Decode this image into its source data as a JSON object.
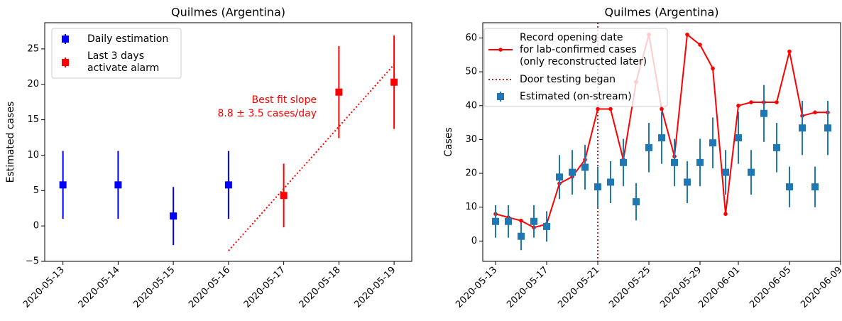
{
  "chart_data": [
    {
      "type": "errorbar",
      "title": "Quilmes (Argentina)",
      "ylabel": "Estimated cases",
      "categories": [
        "2020-05-13",
        "2020-05-14",
        "2020-05-15",
        "2020-05-16",
        "2020-05-17",
        "2020-05-18",
        "2020-05-19"
      ],
      "series": [
        {
          "name": "Daily estimation",
          "color": "#0000ff",
          "values": [
            5.8,
            5.8,
            1.4,
            5.8,
            null,
            null,
            null
          ],
          "errors": [
            4.8,
            4.8,
            4.1,
            4.8,
            null,
            null,
            null
          ]
        },
        {
          "name": "Last 3 days\nactivate alarm",
          "color": "#ff0000",
          "values": [
            null,
            null,
            null,
            null,
            4.3,
            18.9,
            20.3
          ],
          "errors": [
            null,
            null,
            null,
            null,
            4.5,
            6.5,
            6.6
          ]
        }
      ],
      "fit_line": {
        "x": [
          "2020-05-16",
          "2020-05-19"
        ],
        "values": [
          -3.5,
          22.8
        ],
        "color": "#ff0000",
        "style": "dotted"
      },
      "annotation": "Best fit slope\n8.8 ± 3.5 cases/day",
      "annotation_color": "#ff0000",
      "ylim": [
        -5,
        28.7
      ],
      "yticks": [
        {
          "value": -5,
          "label": "−5"
        },
        0,
        5,
        10,
        15,
        20,
        25
      ],
      "legend": "upper left"
    },
    {
      "type": "errorbar_line",
      "title": "Quilmes (Argentina)",
      "ylabel": "Cases",
      "x": [
        "2020-05-13",
        "2020-05-14",
        "2020-05-15",
        "2020-05-16",
        "2020-05-17",
        "2020-05-18",
        "2020-05-19",
        "2020-05-20",
        "2020-05-21",
        "2020-05-22",
        "2020-05-23",
        "2020-05-24",
        "2020-05-25",
        "2020-05-26",
        "2020-05-27",
        "2020-05-28",
        "2020-05-29",
        "2020-05-30",
        "2020-05-31",
        "2020-06-01",
        "2020-06-02",
        "2020-06-03",
        "2020-06-04",
        "2020-06-05",
        "2020-06-06",
        "2020-06-07",
        "2020-06-08"
      ],
      "series": [
        {
          "name": "Record opening date\nfor lab-confirmed cases\n(only reconstructed later)",
          "color": "#ff0000",
          "type": "line",
          "values": [
            8,
            7,
            6,
            4,
            5,
            17,
            19,
            24,
            39,
            39,
            24,
            47,
            61,
            39,
            25,
            61,
            58,
            51,
            8,
            40,
            41,
            41,
            41,
            56,
            37,
            38,
            38
          ]
        },
        {
          "name": "Estimated (on-stream)",
          "color": "#1f77b4",
          "type": "errorbar",
          "values": [
            5.8,
            5.8,
            1.4,
            5.8,
            4.3,
            18.9,
            20.3,
            21.8,
            16,
            17.4,
            23.2,
            11.6,
            27.6,
            30.5,
            23.2,
            17.4,
            23.2,
            29,
            20.3,
            30.5,
            20.3,
            37.7,
            27.6,
            16,
            33.4,
            16,
            33.4
          ],
          "errors": [
            4.8,
            4.8,
            4.1,
            4.8,
            4.5,
            6.5,
            6.6,
            6.6,
            6,
            6.2,
            7,
            5.5,
            7.3,
            7.7,
            7,
            6.2,
            7,
            7.5,
            6.6,
            7.7,
            6.6,
            8.4,
            7.3,
            6,
            8,
            6,
            8
          ]
        }
      ],
      "vlines": [
        {
          "x": "2020-05-21",
          "name": "Door testing began",
          "color": "#a0302a",
          "style": "dotted"
        }
      ],
      "xlim": [
        "2020-05-12",
        "2020-06-09"
      ],
      "xticks": [
        "2020-05-13",
        "2020-05-17",
        "2020-05-21",
        "2020-05-25",
        "2020-05-29",
        "2020-06-01",
        "2020-06-05",
        "2020-06-09"
      ],
      "ylim": [
        -6,
        64.5
      ],
      "yticks": [
        0,
        10,
        20,
        30,
        40,
        50,
        60
      ],
      "legend": "upper left"
    }
  ]
}
